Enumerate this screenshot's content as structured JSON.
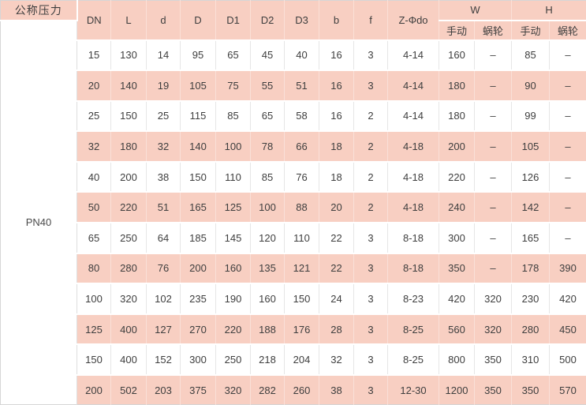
{
  "chart_data": {
    "type": "table",
    "title": "",
    "pressure_column": {
      "header": "公称压力",
      "value": "PN40"
    },
    "columns": [
      "DN",
      "L",
      "d",
      "D",
      "D1",
      "D2",
      "D3",
      "b",
      "f",
      "Z-Φdo"
    ],
    "groups": [
      {
        "label": "W",
        "subcolumns": [
          "手动",
          "蜗轮"
        ]
      },
      {
        "label": "H",
        "subcolumns": [
          "手动",
          "蜗轮"
        ]
      }
    ],
    "rows": [
      [
        "15",
        "130",
        "14",
        "95",
        "65",
        "45",
        "40",
        "16",
        "3",
        "4-14",
        "160",
        "–",
        "85",
        "–"
      ],
      [
        "20",
        "140",
        "19",
        "105",
        "75",
        "55",
        "51",
        "16",
        "3",
        "4-14",
        "180",
        "–",
        "90",
        "–"
      ],
      [
        "25",
        "150",
        "25",
        "115",
        "85",
        "65",
        "58",
        "16",
        "2",
        "4-14",
        "180",
        "–",
        "99",
        "–"
      ],
      [
        "32",
        "180",
        "32",
        "140",
        "100",
        "78",
        "66",
        "18",
        "2",
        "4-18",
        "200",
        "–",
        "105",
        "–"
      ],
      [
        "40",
        "200",
        "38",
        "150",
        "110",
        "85",
        "76",
        "18",
        "2",
        "4-18",
        "220",
        "–",
        "126",
        "–"
      ],
      [
        "50",
        "220",
        "51",
        "165",
        "125",
        "100",
        "88",
        "20",
        "2",
        "4-18",
        "240",
        "–",
        "142",
        "–"
      ],
      [
        "65",
        "250",
        "64",
        "185",
        "145",
        "120",
        "110",
        "22",
        "3",
        "8-18",
        "300",
        "–",
        "165",
        "–"
      ],
      [
        "80",
        "280",
        "76",
        "200",
        "160",
        "135",
        "121",
        "22",
        "3",
        "8-18",
        "350",
        "–",
        "178",
        "390"
      ],
      [
        "100",
        "320",
        "102",
        "235",
        "190",
        "160",
        "150",
        "24",
        "3",
        "8-23",
        "420",
        "320",
        "230",
        "420"
      ],
      [
        "125",
        "400",
        "127",
        "270",
        "220",
        "188",
        "176",
        "28",
        "3",
        "8-25",
        "560",
        "320",
        "280",
        "450"
      ],
      [
        "150",
        "400",
        "152",
        "300",
        "250",
        "218",
        "204",
        "32",
        "3",
        "8-25",
        "800",
        "350",
        "310",
        "500"
      ],
      [
        "200",
        "502",
        "203",
        "375",
        "320",
        "282",
        "260",
        "38",
        "3",
        "12-30",
        "1200",
        "350",
        "350",
        "570"
      ]
    ],
    "layout": {
      "row_shading": "alternating white / pink, starting white",
      "pressure_value_rowspan": 12
    },
    "colors": {
      "header_pink": "#f8cfc2",
      "row_pink": "#f8cfc2",
      "row_white": "#ffffff",
      "grid_gray": "#e6e6e6",
      "text": "#3e3e3e"
    }
  }
}
